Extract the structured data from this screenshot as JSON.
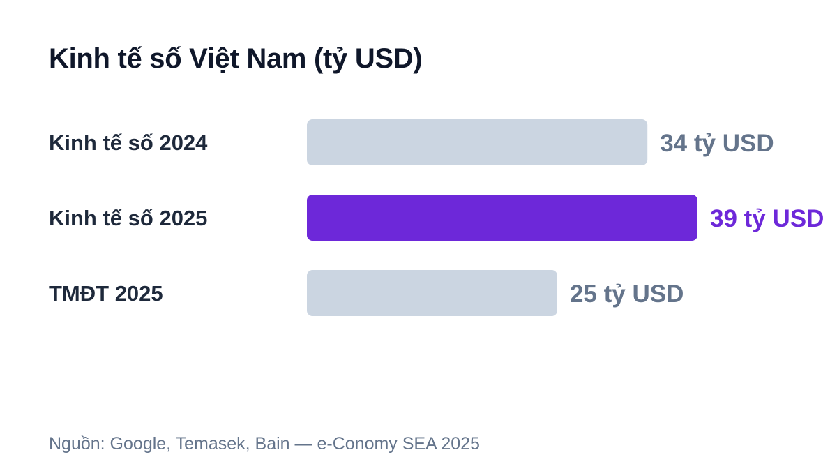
{
  "chart_data": {
    "type": "bar",
    "orientation": "horizontal",
    "title": "Kinh tế số Việt Nam (tỷ USD)",
    "categories": [
      "Kinh tế số 2024",
      "Kinh tế số 2025",
      "TMĐT 2025"
    ],
    "values": [
      34,
      39,
      25
    ],
    "value_labels": [
      "34 tỷ USD",
      "39 tỷ USD",
      "25 tỷ USD"
    ],
    "highlighted_index": 1,
    "xlim": [
      0,
      39
    ],
    "grid": false,
    "legend": "none",
    "colors": {
      "bar_default": "#cbd5e1",
      "bar_highlight": "#6d28d9",
      "label_default": "#64748b",
      "label_highlight": "#6d28d9",
      "category_text": "#1e293b",
      "title_text": "#0f172a"
    }
  },
  "source": "Nguồn: Google, Temasek, Bain — e-Conomy SEA 2025"
}
